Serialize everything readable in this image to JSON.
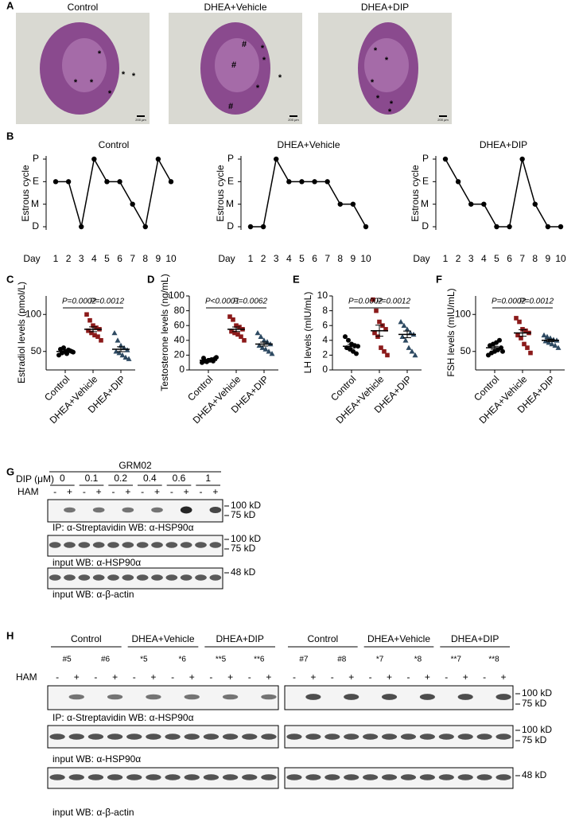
{
  "panel_labels": [
    "A",
    "B",
    "C",
    "D",
    "E",
    "F",
    "G",
    "H"
  ],
  "panel_a": {
    "scale_bar": "200 μm",
    "images": [
      {
        "title": "Control",
        "markers": [
          "*",
          "*",
          "*",
          "*",
          "*",
          "*"
        ]
      },
      {
        "title": "DHEA+Vehicle",
        "markers": [
          "#",
          "#",
          "#",
          "*",
          "*",
          "*",
          "*"
        ]
      },
      {
        "title": "DHEA+DIP",
        "markers": [
          "*",
          "*",
          "*",
          "*",
          "*",
          "*"
        ]
      }
    ]
  },
  "chart_data": [
    {
      "type": "line",
      "title": "Control",
      "xlabel": "Day",
      "ylabel": "Estrous cycle",
      "x": [
        1,
        2,
        3,
        4,
        5,
        6,
        7,
        8,
        9,
        10
      ],
      "xlim": [
        1,
        10
      ],
      "xticks": [
        1,
        2,
        3,
        4,
        5,
        6,
        7,
        8,
        9,
        10
      ],
      "ylim": [
        0,
        3
      ],
      "yticks": [
        {
          "value": 0,
          "label": "D"
        },
        {
          "value": 1,
          "label": "M"
        },
        {
          "value": 2,
          "label": "E"
        },
        {
          "value": 3,
          "label": "P"
        }
      ],
      "color": "#000000",
      "values": [
        2,
        2,
        0,
        3,
        2,
        2,
        1,
        0,
        3,
        2
      ]
    },
    {
      "type": "line",
      "title": "DHEA+Vehicle",
      "xlabel": "Day",
      "ylabel": "Estrous cycle",
      "x": [
        1,
        2,
        3,
        4,
        5,
        6,
        7,
        8,
        9,
        10
      ],
      "xlim": [
        1,
        10
      ],
      "xticks": [
        1,
        2,
        3,
        4,
        5,
        6,
        7,
        8,
        9,
        10
      ],
      "ylim": [
        0,
        3
      ],
      "yticks": [
        {
          "value": 0,
          "label": "D"
        },
        {
          "value": 1,
          "label": "M"
        },
        {
          "value": 2,
          "label": "E"
        },
        {
          "value": 3,
          "label": "P"
        }
      ],
      "color": "#000000",
      "values": [
        0,
        0,
        3,
        2,
        2,
        2,
        2,
        1,
        1,
        0
      ]
    },
    {
      "type": "line",
      "title": "DHEA+DIP",
      "xlabel": "Day",
      "ylabel": "Estrous cycle",
      "x": [
        1,
        2,
        3,
        4,
        5,
        6,
        7,
        8,
        9,
        10
      ],
      "xlim": [
        1,
        10
      ],
      "xticks": [
        1,
        2,
        3,
        4,
        5,
        6,
        7,
        8,
        9,
        10
      ],
      "ylim": [
        0,
        3
      ],
      "yticks": [
        {
          "value": 0,
          "label": "D"
        },
        {
          "value": 1,
          "label": "M"
        },
        {
          "value": 2,
          "label": "E"
        },
        {
          "value": 3,
          "label": "P"
        }
      ],
      "color": "#000000",
      "values": [
        3,
        2,
        1,
        1,
        0,
        0,
        3,
        1,
        0,
        0
      ]
    },
    {
      "type": "dot",
      "ylabel": "Estradiol levels  (pmol/L)",
      "ylim": [
        25,
        125
      ],
      "yticks": [
        50,
        100
      ],
      "annotations": [
        "P=0.0002",
        "P=0.0012"
      ],
      "series": [
        {
          "name": "Control",
          "color": "#000000",
          "marker": "circle",
          "values": [
            45,
            48,
            50,
            52,
            50,
            53,
            55,
            47,
            51,
            49
          ],
          "mean": 50,
          "sem": 1
        },
        {
          "name": "DHEA+Vehicle",
          "color": "#8b1a1a",
          "marker": "square",
          "values": [
            100,
            92,
            85,
            82,
            80,
            78,
            75,
            72,
            70,
            65
          ],
          "mean": 80,
          "sem": 3.2
        },
        {
          "name": "DHEA+DIP",
          "color": "#2e4a62",
          "marker": "triangle",
          "values": [
            75,
            65,
            58,
            55,
            52,
            50,
            48,
            45,
            42,
            40
          ],
          "mean": 53,
          "sem": 3.3
        }
      ]
    },
    {
      "type": "dot",
      "ylabel": "Testosterone levels (ng/mL)",
      "ylim": [
        0,
        100
      ],
      "yticks": [
        0,
        20,
        40,
        60,
        80,
        100
      ],
      "annotations": [
        "P<0.0001",
        "P=0.0062"
      ],
      "series": [
        {
          "name": "Control",
          "color": "#000000",
          "marker": "circle",
          "values": [
            10,
            12,
            13,
            14,
            15,
            16,
            11,
            13,
            12,
            17
          ],
          "mean": 13,
          "sem": 0.7
        },
        {
          "name": "DHEA+Vehicle",
          "color": "#8b1a1a",
          "marker": "square",
          "values": [
            72,
            68,
            60,
            58,
            55,
            52,
            50,
            48,
            45,
            40
          ],
          "mean": 55,
          "sem": 3.1
        },
        {
          "name": "DHEA+DIP",
          "color": "#2e4a62",
          "marker": "triangle",
          "values": [
            50,
            45,
            40,
            38,
            35,
            33,
            30,
            28,
            25,
            22
          ],
          "mean": 35,
          "sem": 2.7
        }
      ]
    },
    {
      "type": "dot",
      "ylabel": "LH levels (mIU/mL)",
      "ylim": [
        0,
        10
      ],
      "yticks": [
        0,
        2,
        4,
        6,
        8,
        10
      ],
      "annotations": [
        "P=0.0002",
        "P=0.0012"
      ],
      "series": [
        {
          "name": "Control",
          "color": "#000000",
          "marker": "circle",
          "values": [
            4.5,
            4,
            3.5,
            3.3,
            3.2,
            3,
            2.8,
            2.5,
            2.2
          ],
          "mean": 3.2,
          "sem": 0.25
        },
        {
          "name": "DHEA+Vehicle",
          "color": "#8b1a1a",
          "marker": "square",
          "values": [
            9.5,
            8,
            6.5,
            6,
            5.5,
            5,
            4.5,
            3,
            2.5,
            2
          ],
          "mean": 5.3,
          "sem": 0.75
        },
        {
          "name": "DHEA+DIP",
          "color": "#2e4a62",
          "marker": "triangle",
          "values": [
            6.5,
            6,
            5.5,
            5,
            4.8,
            4.5,
            4,
            3,
            2.5,
            2
          ],
          "mean": 4.8,
          "sem": 0.45
        }
      ]
    },
    {
      "type": "dot",
      "ylabel": "FSH levels (mIU/mL)",
      "ylim": [
        25,
        125
      ],
      "yticks": [
        50,
        100
      ],
      "annotations": [
        "P=0.0002",
        "P=0.0012"
      ],
      "series": [
        {
          "name": "Control",
          "color": "#000000",
          "marker": "circle",
          "values": [
            45,
            48,
            50,
            52,
            55,
            58,
            60,
            62,
            65,
            50
          ],
          "mean": 55,
          "sem": 2
        },
        {
          "name": "DHEA+Vehicle",
          "color": "#8b1a1a",
          "marker": "square",
          "values": [
            95,
            90,
            80,
            78,
            75,
            72,
            68,
            60,
            55,
            48
          ],
          "mean": 75,
          "sem": 4.5
        },
        {
          "name": "DHEA+DIP",
          "color": "#2e4a62",
          "marker": "triangle",
          "values": [
            72,
            70,
            68,
            66,
            65,
            64,
            62,
            60,
            58,
            55
          ],
          "mean": 65,
          "sem": 1.7
        }
      ]
    }
  ],
  "panel_g": {
    "title": "GRM02",
    "dip_label": "DIP (μM)",
    "doses": [
      "0",
      "0.1",
      "0.2",
      "0.4",
      "0.6",
      "1"
    ],
    "ham_label": "HAM",
    "ham_signs": [
      "-",
      "+"
    ],
    "blots": [
      {
        "caption": "IP: α-Streptavidin WB: α-HSP90α",
        "markers": [
          "100 kD",
          "75 kD"
        ]
      },
      {
        "caption": "input  WB: α-HSP90α",
        "markers": [
          "100 kD",
          "75 kD"
        ]
      },
      {
        "caption": "input  WB: α-β-actin",
        "markers": [
          "48 kD"
        ]
      }
    ]
  },
  "panel_h": {
    "groups": [
      "Control",
      "DHEA+Vehicle",
      "DHEA+DIP",
      "Control",
      "DHEA+Vehicle",
      "DHEA+DIP"
    ],
    "samples": [
      "#5",
      "#6",
      "*5",
      "*6",
      "**5",
      "**6",
      "#7",
      "#8",
      "*7",
      "*8",
      "**7",
      "**8"
    ],
    "ham_label": "HAM",
    "ham_signs": [
      "-",
      "+"
    ],
    "blots": [
      {
        "caption": "IP: α-Streptavidin WB: α-HSP90α",
        "markers": [
          "100 kD",
          "75 kD"
        ]
      },
      {
        "caption": "input  WB: α-HSP90α",
        "markers": [
          "100 kD",
          "75 kD"
        ]
      },
      {
        "caption": "input  WB: α-β-actin",
        "markers": [
          "48 kD"
        ]
      }
    ]
  }
}
